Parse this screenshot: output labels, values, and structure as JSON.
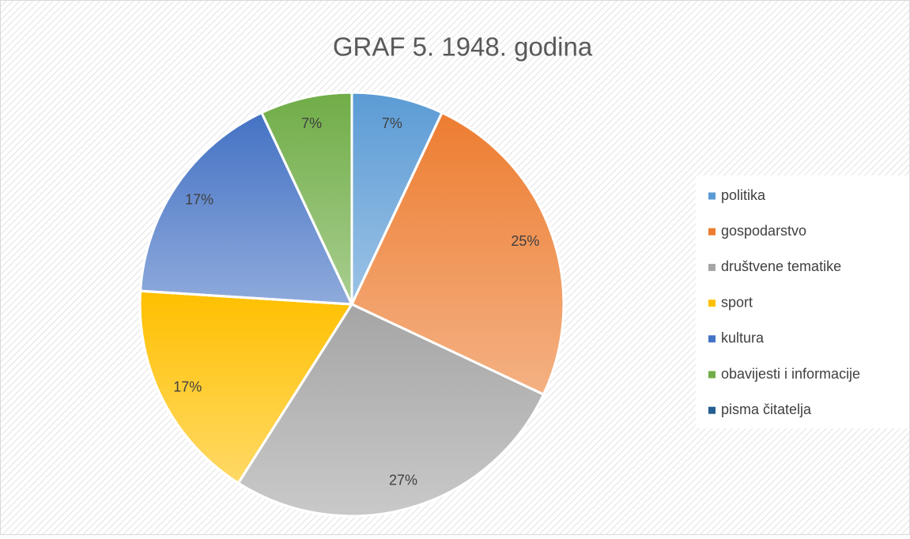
{
  "chart_data": {
    "type": "pie",
    "title": "GRAF 5. 1948. godina",
    "categories": [
      "politika",
      "gospodarstvo",
      "društvene tematike",
      "sport",
      "kultura",
      "obavijesti i informacije",
      "pisma čitatelja"
    ],
    "values": [
      7,
      25,
      27,
      17,
      17,
      7,
      0
    ],
    "value_labels": [
      "7%",
      "25%",
      "27%",
      "17%",
      "17%",
      "7%",
      null
    ],
    "colors": [
      "#5b9bd5",
      "#ed7d31",
      "#a5a5a5",
      "#ffc000",
      "#4472c4",
      "#70ad47",
      "#255e91"
    ],
    "legend": "right"
  }
}
